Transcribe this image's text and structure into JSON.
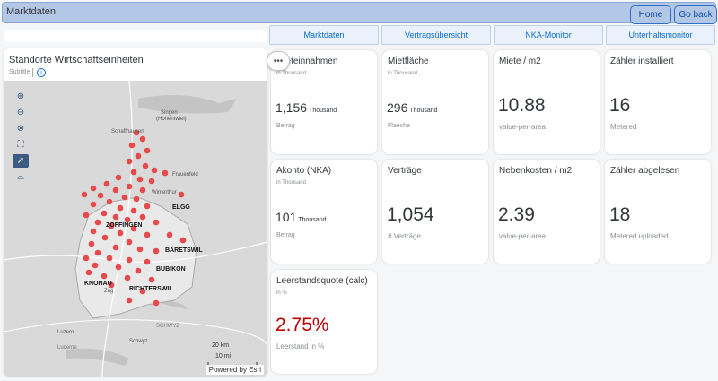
{
  "shell": {
    "title": "Marktdaten",
    "home": "Home",
    "back": "Go back"
  },
  "tabs": [
    "Marktdaten",
    "Vertragsübersicht",
    "NKA-Monitor",
    "Unterhaltsmonitor"
  ],
  "map": {
    "title": "Standorte Wirtschaftseinheiten",
    "subtitle": "Subtitle",
    "info": "i",
    "powered": "Powered by Esri",
    "scale_km": "20 km",
    "scale_mi": "10 mi",
    "places": [
      "Singen",
      "(Hohentwiel)",
      "Schaffhausen",
      "Frauenfeld",
      "Winterthur",
      "ELGG",
      "ZOFFINGEN",
      "BÄRETSWIL",
      "BUBIKON",
      "KNONAU",
      "RICHTERSWIL",
      "Zug",
      "SCHWYZ",
      "Luzern",
      "Lucerne",
      "Schwyz"
    ],
    "marker_color": "#e8494b"
  },
  "more_button": "•••",
  "tiles": [
    {
      "title": "Mieteinnahmen",
      "unit": "in Thousand",
      "value": "1,156",
      "scale": "Thousand",
      "footer": "Betrag"
    },
    {
      "title": "Mietfläche",
      "unit": "in Thousand",
      "value": "296",
      "scale": "Thousand",
      "footer": "Flaeche"
    },
    {
      "title": "Miete / m2",
      "unit": "",
      "value": "10.88",
      "scale": "",
      "footer": "value-per-area"
    },
    {
      "title": "Zähler installiert",
      "unit": "",
      "value": "16",
      "scale": "",
      "footer": "Metered"
    },
    {
      "title": "Akonto (NKA)",
      "unit": "in Thousand",
      "value": "101",
      "scale": "Thousand",
      "footer": "Betrag"
    },
    {
      "title": "Verträge",
      "unit": "",
      "value": "1,054",
      "scale": "",
      "footer": "# Verträge"
    },
    {
      "title": "Nebenkosten / m2",
      "unit": "",
      "value": "2.39",
      "scale": "",
      "footer": "value-per-area"
    },
    {
      "title": "Zähler abgelesen",
      "unit": "",
      "value": "18",
      "scale": "",
      "footer": "Metered uploaded"
    },
    {
      "title": "Leerstandsquote (calc)",
      "unit": "in %",
      "value": "2.75%",
      "scale": "",
      "footer": "Leerstand in %"
    }
  ],
  "colors": {
    "shell_bg": "#b3c8e6",
    "accent": "#0a6ed1",
    "critical": "#bb0000"
  }
}
